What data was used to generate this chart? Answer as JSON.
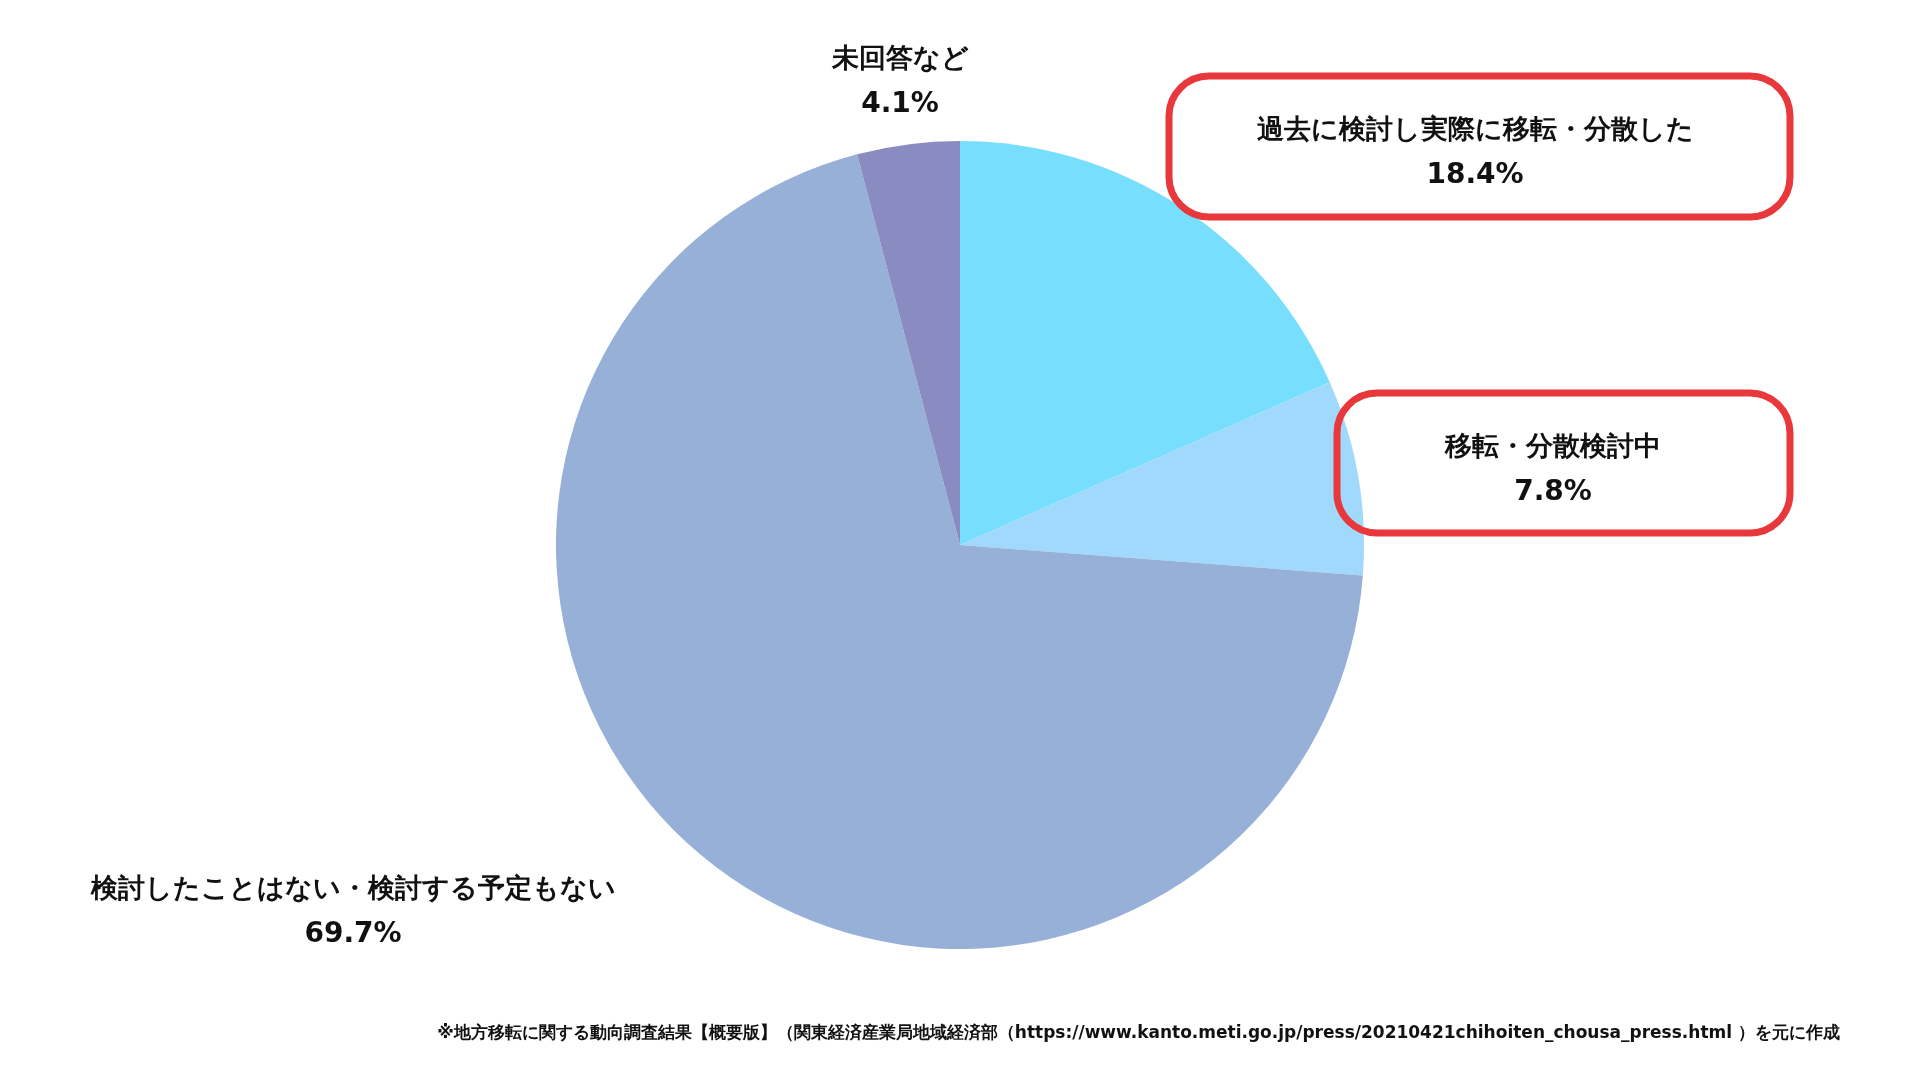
{
  "chart_data": {
    "type": "pie",
    "categories": [
      "過去に検討し実際に移転・分散した",
      "移転・分散検討中",
      "検討したことはない・検討する予定もない",
      "未回答など"
    ],
    "values": [
      18.4,
      7.8,
      69.7,
      4.1
    ],
    "colors": [
      "#77dffd",
      "#a0d9fb",
      "#97b0d8",
      "#8a8bc1"
    ],
    "value_labels": [
      "18.4%",
      "7.8%",
      "69.7%",
      "4.1%"
    ],
    "annotations": [
      "※地方移転に関する動向調査結果【概要版】（関東経済産業局地域経済部（https://www.kanto.meti.go.jp/press/20210421chihoiten_chousa_press.html ）を元に作成"
    ]
  }
}
